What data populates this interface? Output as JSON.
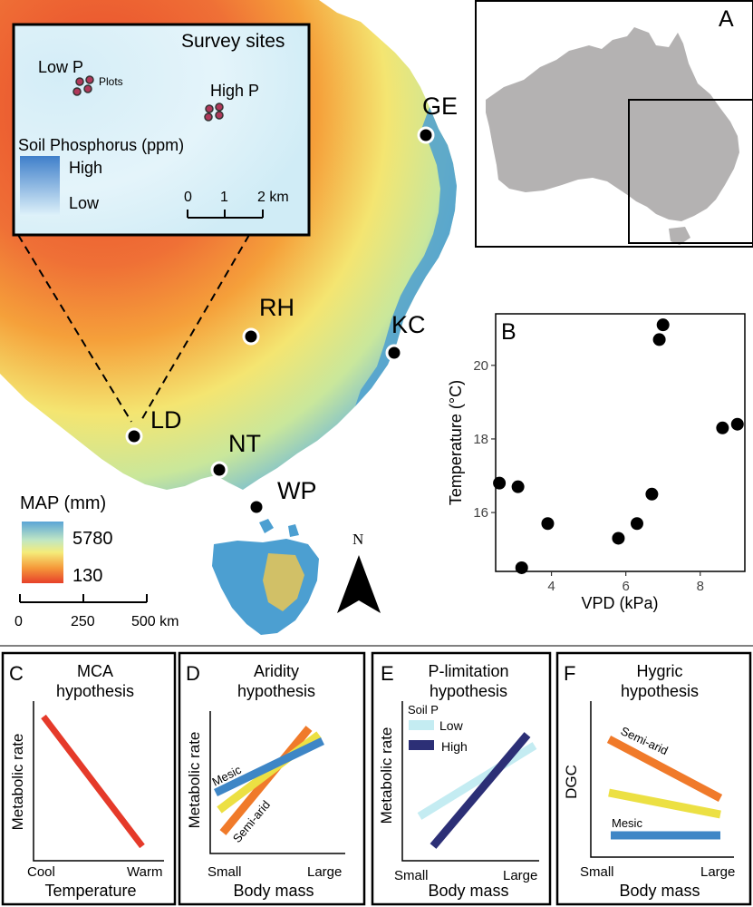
{
  "panel_a": {
    "label": "A",
    "sites": [
      {
        "code": "GE"
      },
      {
        "code": "KC"
      },
      {
        "code": "RH"
      },
      {
        "code": "LD"
      },
      {
        "code": "NT"
      },
      {
        "code": "WP"
      }
    ],
    "inset": {
      "title": "Survey sites",
      "low_p": "Low P",
      "high_p": "High P",
      "plots": "Plots",
      "legend_title": "Soil Phosphorus (ppm)",
      "legend_high": "High",
      "legend_low": "Low",
      "scale_ticks": [
        "0",
        "1",
        "2 km"
      ]
    },
    "map_legend": {
      "title": "MAP (mm)",
      "max": "5780",
      "min": "130"
    },
    "scale_ticks": [
      "0",
      "250",
      "500 km"
    ],
    "north": "N"
  },
  "chart_data": [
    {
      "type": "scatter",
      "panel": "B",
      "xlabel": "VPD (kPa)",
      "ylabel": "Temperature (°C)",
      "xlim": [
        2.5,
        9.2
      ],
      "ylim": [
        14.4,
        21.4
      ],
      "xticks": [
        "4",
        "6",
        "8"
      ],
      "yticks": [
        "16",
        "18",
        "20"
      ],
      "points": [
        {
          "x": 2.6,
          "y": 16.8
        },
        {
          "x": 3.1,
          "y": 16.7
        },
        {
          "x": 3.2,
          "y": 14.5
        },
        {
          "x": 3.9,
          "y": 15.7
        },
        {
          "x": 5.8,
          "y": 15.3
        },
        {
          "x": 6.3,
          "y": 15.7
        },
        {
          "x": 6.7,
          "y": 16.5
        },
        {
          "x": 6.9,
          "y": 20.7
        },
        {
          "x": 7.0,
          "y": 21.1
        },
        {
          "x": 8.6,
          "y": 18.3
        },
        {
          "x": 9.0,
          "y": 18.4
        }
      ]
    }
  ],
  "panels": {
    "c": {
      "label": "C",
      "title": [
        "MCA",
        "hypothesis"
      ],
      "ylabel": "Metabolic rate",
      "xlabel": "Temperature",
      "x_left": "Cool",
      "x_right": "Warm"
    },
    "d": {
      "label": "D",
      "title": [
        "Aridity",
        "hypothesis"
      ],
      "ylabel": "Metabolic rate",
      "xlabel": "Body mass",
      "x_left": "Small",
      "x_right": "Large",
      "mesic": "Mesic",
      "semiarid": "Semi-arid"
    },
    "e": {
      "label": "E",
      "title": [
        "P-limitation",
        "hypothesis"
      ],
      "ylabel": "Metabolic rate",
      "xlabel": "Body mass",
      "x_left": "Small",
      "x_right": "Large",
      "legend_title": "Soil P",
      "legend_low": "Low",
      "legend_high": "High"
    },
    "f": {
      "label": "F",
      "title": [
        "Hygric",
        "hypothesis"
      ],
      "ylabel": "DGC",
      "xlabel": "Body mass",
      "x_left": "Small",
      "x_right": "Large",
      "semiarid": "Semi-arid",
      "mesic": "Mesic"
    }
  },
  "colors": {
    "hot": "#e8452a",
    "warm": "#f5a03a",
    "mid": "#f4e571",
    "cool": "#9fd6cf",
    "wet": "#4c9fd1",
    "mca_line": "#e53a2a",
    "orange_line": "#f07a2a",
    "yellow_line": "#ece043",
    "blue_line": "#3e86c6",
    "low_p_line": "#c4ecf2",
    "high_p_line": "#2c2f76",
    "aus": "#b4b2b2"
  }
}
